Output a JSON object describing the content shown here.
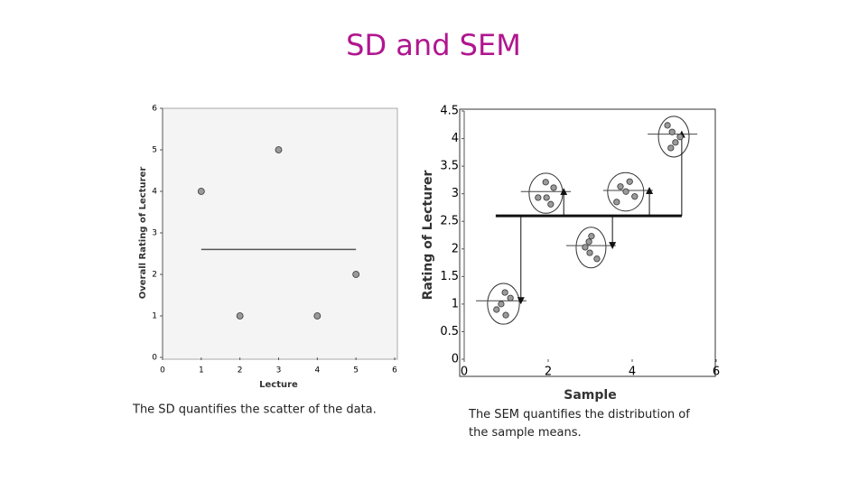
{
  "title": "SD and SEM",
  "captions": [
    "The SD quantifies the scatter of the data.",
    "The SEM quantifies the distribution of the sample means."
  ],
  "chart_data": [
    {
      "type": "scatter",
      "xlabel": "Lecture",
      "ylabel": "Overall Rating of Lecturer",
      "x": [
        1,
        2,
        3,
        4,
        5
      ],
      "values": [
        4,
        1,
        5,
        1,
        2
      ],
      "color": "#9a9a9a",
      "mean_line": {
        "value": 2.6,
        "x": [
          1,
          5
        ]
      },
      "xlim": [
        0,
        6
      ],
      "ylim": [
        0,
        6
      ],
      "xticks": [
        0,
        1,
        2,
        3,
        4,
        5,
        6
      ],
      "yticks": [
        0,
        1,
        2,
        3,
        4,
        5,
        6
      ]
    },
    {
      "type": "sample-means",
      "xlabel": "Sample",
      "ylabel": "Rating of Lecturer",
      "color": "#9a9a9a",
      "groups": [
        {
          "x": [
            0.97,
            1.1,
            0.88,
            0.77,
            0.99
          ],
          "values": [
            1.21,
            1.11,
            1.0,
            0.9,
            0.8
          ],
          "mean": 1.06,
          "mean_x": [
            0.28,
            1.48
          ],
          "arrow_x": 1.35
        },
        {
          "x": [
            1.94,
            2.13,
            1.76,
            1.96,
            2.06
          ],
          "values": [
            3.21,
            3.11,
            2.93,
            2.93,
            2.81
          ],
          "mean": 3.04,
          "mean_x": [
            1.35,
            2.54
          ],
          "arrow_x": 2.37
        },
        {
          "x": [
            3.03,
            2.97,
            2.88,
            2.99,
            3.16
          ],
          "values": [
            2.23,
            2.13,
            2.03,
            1.93,
            1.82
          ],
          "mean": 2.06,
          "mean_x": [
            2.43,
            3.61
          ],
          "arrow_x": 3.53
        },
        {
          "x": [
            3.94,
            3.72,
            3.85,
            4.06,
            3.63
          ],
          "values": [
            3.22,
            3.13,
            3.04,
            2.95,
            2.85
          ],
          "mean": 3.06,
          "mean_x": [
            3.31,
            4.49
          ],
          "arrow_x": 4.41
        },
        {
          "x": [
            4.84,
            4.95,
            5.14,
            5.03,
            4.92
          ],
          "values": [
            4.24,
            4.12,
            4.03,
            3.93,
            3.83
          ],
          "mean": 4.08,
          "mean_x": [
            4.37,
            5.55
          ],
          "arrow_x": 5.18
        }
      ],
      "grand_mean": {
        "value": 2.6,
        "x": [
          0.75,
          5.18
        ]
      },
      "xlim": [
        0,
        6
      ],
      "ylim": [
        0,
        4.5
      ],
      "xticks": [
        0,
        2,
        4,
        6
      ],
      "yticks": [
        0,
        0.5,
        1,
        1.5,
        2,
        2.5,
        3,
        3.5,
        4,
        4.5
      ]
    }
  ]
}
